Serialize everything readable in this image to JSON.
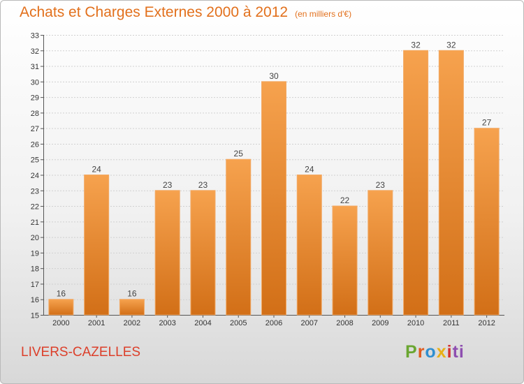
{
  "chart_data": {
    "type": "bar",
    "title": "Achats et Charges Externes 2000 à 2012",
    "subtitle": "(en milliers d'€)",
    "xlabel": "",
    "ylabel": "",
    "categories": [
      "2000",
      "2001",
      "2002",
      "2003",
      "2004",
      "2005",
      "2006",
      "2007",
      "2008",
      "2009",
      "2010",
      "2011",
      "2012"
    ],
    "values": [
      16,
      24,
      16,
      23,
      23,
      25,
      30,
      24,
      22,
      23,
      32,
      32,
      27
    ],
    "ylim": [
      15,
      33
    ],
    "yticks": [
      "15",
      "16",
      "17",
      "18",
      "19",
      "20",
      "21",
      "22",
      "23",
      "24",
      "25",
      "26",
      "27",
      "28",
      "29",
      "30",
      "31",
      "32",
      "33"
    ],
    "grid": true,
    "bar_color_top": "#f6a24e",
    "bar_color_bottom": "#d26f17"
  },
  "footer": {
    "place": "LIVERS-CAZELLES",
    "logo_parts": [
      "P",
      "r",
      "o",
      "x",
      "i",
      "ti"
    ]
  }
}
